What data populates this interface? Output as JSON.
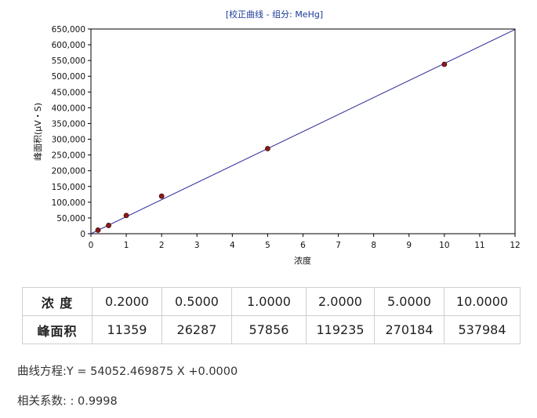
{
  "chart_data": {
    "type": "scatter",
    "title": "[校正曲线 - 组分: MeHg]",
    "xlabel": "浓度",
    "ylabel": "峰面积(μV・S)",
    "xlim": [
      0,
      12
    ],
    "ylim": [
      0,
      650000
    ],
    "x_ticks": [
      "0",
      "1",
      "2",
      "3",
      "4",
      "5",
      "6",
      "7",
      "8",
      "9",
      "10",
      "11",
      "12"
    ],
    "y_ticks": [
      "0",
      "50,000",
      "100,000",
      "150,000",
      "200,000",
      "250,000",
      "300,000",
      "350,000",
      "400,000",
      "450,000",
      "500,000",
      "550,000",
      "600,000",
      "650,000"
    ],
    "points": [
      {
        "x": 0.2,
        "y": 11359
      },
      {
        "x": 0.5,
        "y": 26287
      },
      {
        "x": 1.0,
        "y": 57856
      },
      {
        "x": 2.0,
        "y": 119235
      },
      {
        "x": 5.0,
        "y": 270184
      },
      {
        "x": 10.0,
        "y": 537984
      }
    ],
    "fit_line": {
      "slope": 54052.469875,
      "intercept": 0,
      "x_range": [
        0,
        12
      ]
    },
    "grid": false,
    "colors": {
      "points": "#8b1a1a",
      "line": "#2a2a9a",
      "title": "#1a3a9a"
    }
  },
  "table": {
    "row1_header": "浓 度",
    "row2_header": "峰面积",
    "concentrations": [
      "0.2000",
      "0.5000",
      "1.0000",
      "2.0000",
      "5.0000",
      "10.0000"
    ],
    "peak_areas": [
      "11359",
      "26287",
      "57856",
      "119235",
      "270184",
      "537984"
    ]
  },
  "equation": "曲线方程:Y = 54052.469875 X +0.0000",
  "correlation": "相关系数: : 0.9998"
}
